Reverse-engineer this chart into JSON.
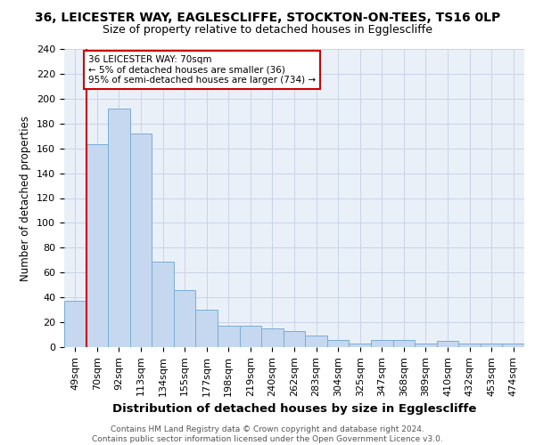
{
  "title1": "36, LEICESTER WAY, EAGLESCLIFFE, STOCKTON-ON-TEES, TS16 0LP",
  "title2": "Size of property relative to detached houses in Egglescliffe",
  "xlabel": "Distribution of detached houses by size in Egglescliffe",
  "ylabel": "Number of detached properties",
  "categories": [
    "49sqm",
    "70sqm",
    "92sqm",
    "113sqm",
    "134sqm",
    "155sqm",
    "177sqm",
    "198sqm",
    "219sqm",
    "240sqm",
    "262sqm",
    "283sqm",
    "304sqm",
    "325sqm",
    "347sqm",
    "368sqm",
    "389sqm",
    "410sqm",
    "432sqm",
    "453sqm",
    "474sqm"
  ],
  "values": [
    37,
    163,
    192,
    172,
    69,
    46,
    30,
    17,
    17,
    15,
    13,
    9,
    6,
    3,
    6,
    6,
    3,
    5,
    3,
    3,
    3
  ],
  "bar_color": "#c5d8f0",
  "bar_edge_color": "#7aadd4",
  "vline_color": "#cc0000",
  "annotation_box_text": "36 LEICESTER WAY: 70sqm\n← 5% of detached houses are smaller (36)\n95% of semi-detached houses are larger (734) →",
  "annotation_box_color": "#cc0000",
  "ylim": [
    0,
    240
  ],
  "yticks": [
    0,
    20,
    40,
    60,
    80,
    100,
    120,
    140,
    160,
    180,
    200,
    220,
    240
  ],
  "grid_color": "#c8d4e8",
  "background_color": "#eaf0f8",
  "footnote": "Contains HM Land Registry data © Crown copyright and database right 2024.\nContains public sector information licensed under the Open Government Licence v3.0.",
  "title1_fontsize": 10,
  "title2_fontsize": 9,
  "xlabel_fontsize": 9.5,
  "ylabel_fontsize": 8.5,
  "tick_fontsize": 8,
  "footnote_fontsize": 6.5
}
